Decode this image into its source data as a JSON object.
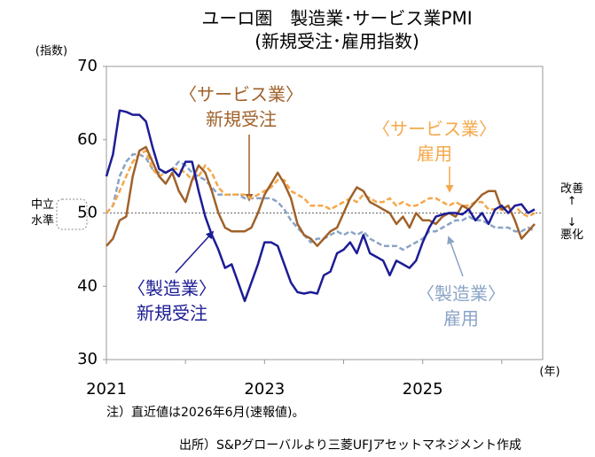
{
  "chart_data": {
    "type": "line",
    "title": [
      "ユーロ圏　製造業･サービス業PMI",
      "(新規受注･雇用指数)"
    ],
    "ylabel": "(指数)",
    "xlabel": "(年)",
    "categories": [
      "2021",
      null,
      null,
      null,
      null,
      null,
      null,
      null,
      null,
      null,
      null,
      null,
      null,
      null,
      null,
      null,
      null,
      null,
      null,
      null,
      null,
      null,
      null,
      null,
      "2023",
      null,
      null,
      null,
      null,
      null,
      null,
      null,
      null,
      null,
      null,
      null,
      null,
      null,
      null,
      null,
      null,
      null,
      null,
      null,
      null,
      null,
      null,
      null,
      "2025",
      null,
      null,
      null,
      null,
      null,
      null,
      null,
      null,
      null,
      null,
      null,
      null,
      null,
      null,
      null,
      null,
      null
    ],
    "series": [
      {
        "name": [
          "〈製造業〉",
          "新規受注"
        ],
        "color": "#1c1c96",
        "dashed": false,
        "values": [
          55,
          58,
          64,
          63.8,
          63.4,
          63.4,
          62.5,
          59,
          56,
          55.5,
          56,
          55,
          57,
          57,
          53,
          49.5,
          47,
          45,
          42.5,
          43,
          40.5,
          38,
          40.5,
          43,
          46,
          46,
          45.5,
          43,
          40.5,
          39.2,
          39,
          39.2,
          39,
          41.5,
          42,
          44.5,
          45,
          46,
          44.5,
          47,
          44.5,
          44,
          43.5,
          41.5,
          43.5,
          43,
          42.5,
          43.5,
          46,
          48,
          49.5,
          49.8,
          50,
          50,
          49.8,
          50.5,
          49,
          50,
          48.5,
          50.5,
          51,
          50,
          51,
          51.2,
          50,
          50.5
        ]
      },
      {
        "name": [
          "〈サービス業〉",
          "新規受注"
        ],
        "color": "#a0612a",
        "dashed": false,
        "values": [
          45.5,
          46.5,
          49,
          49.5,
          55,
          58.5,
          59,
          57,
          55,
          54,
          55.5,
          53,
          51.5,
          54.5,
          56.5,
          55.5,
          53,
          50,
          48,
          47.5,
          47.5,
          47.5,
          48,
          50,
          52.5,
          54,
          55.5,
          54,
          52,
          48.5,
          47,
          46.5,
          45.5,
          46.5,
          47.5,
          48,
          50,
          52,
          53.5,
          53,
          51.5,
          51,
          50.5,
          50,
          48.5,
          49.5,
          48,
          50,
          49,
          49,
          48.5,
          49.5,
          50,
          49.5,
          51,
          50.5,
          51.5,
          52.5,
          53,
          53,
          50.5,
          51,
          49,
          46.5,
          47.5,
          48.5
        ]
      },
      {
        "name": [
          "〈サービス業〉",
          "雇用"
        ],
        "color": "#f5a84a",
        "dashed": true,
        "values": [
          50,
          51,
          53,
          55,
          57,
          58,
          58.5,
          56,
          55,
          55.5,
          56,
          56,
          55.5,
          54.5,
          55,
          56.5,
          55.5,
          53.5,
          52.5,
          52.5,
          52.5,
          52.5,
          52,
          52.5,
          53,
          53.5,
          54.5,
          54.5,
          53,
          52.5,
          52,
          51,
          51,
          51,
          50.5,
          51,
          51.5,
          52,
          51.5,
          52.5,
          52,
          51.5,
          51.5,
          52,
          51,
          51.5,
          51,
          51,
          51.5,
          52,
          52,
          51.5,
          51,
          51.5,
          51,
          51,
          51.5,
          51.5,
          50.5,
          50.5,
          50.5,
          50,
          51,
          50,
          49.5,
          50
        ]
      },
      {
        "name": [
          "〈製造業〉",
          "雇用"
        ],
        "color": "#8aa4c6",
        "dashed": true,
        "values": [
          50,
          51,
          55,
          57,
          58,
          58,
          57.5,
          56,
          55.5,
          55.5,
          56,
          57,
          56.5,
          55.5,
          55,
          54.5,
          53.5,
          52.5,
          52.5,
          52.5,
          52.5,
          52,
          52,
          52,
          52,
          52,
          51.5,
          50.5,
          49,
          48,
          47,
          46,
          46.5,
          46.5,
          47,
          47.5,
          47,
          47.5,
          47,
          47.5,
          46.5,
          46,
          45.5,
          45.5,
          45.5,
          45,
          45.5,
          46,
          46.5,
          47.5,
          47.5,
          48,
          48.5,
          49,
          49,
          49.5,
          49,
          49,
          48.5,
          48,
          48,
          48,
          47.5,
          47.5,
          48,
          47.5
        ]
      }
    ],
    "ylim": [
      30,
      70
    ],
    "yticks": [
      30,
      40,
      50,
      60,
      70
    ],
    "reference_line": {
      "value": 50,
      "label": [
        "中立",
        "水準"
      ],
      "side_label": [
        "改善",
        "↑",
        "↓",
        "悪化"
      ]
    },
    "note": "注）直近値は2026年6月(速報値)。",
    "source": "出所）S&Pグローバルより三菱UFJアセットマネジメント作成"
  }
}
